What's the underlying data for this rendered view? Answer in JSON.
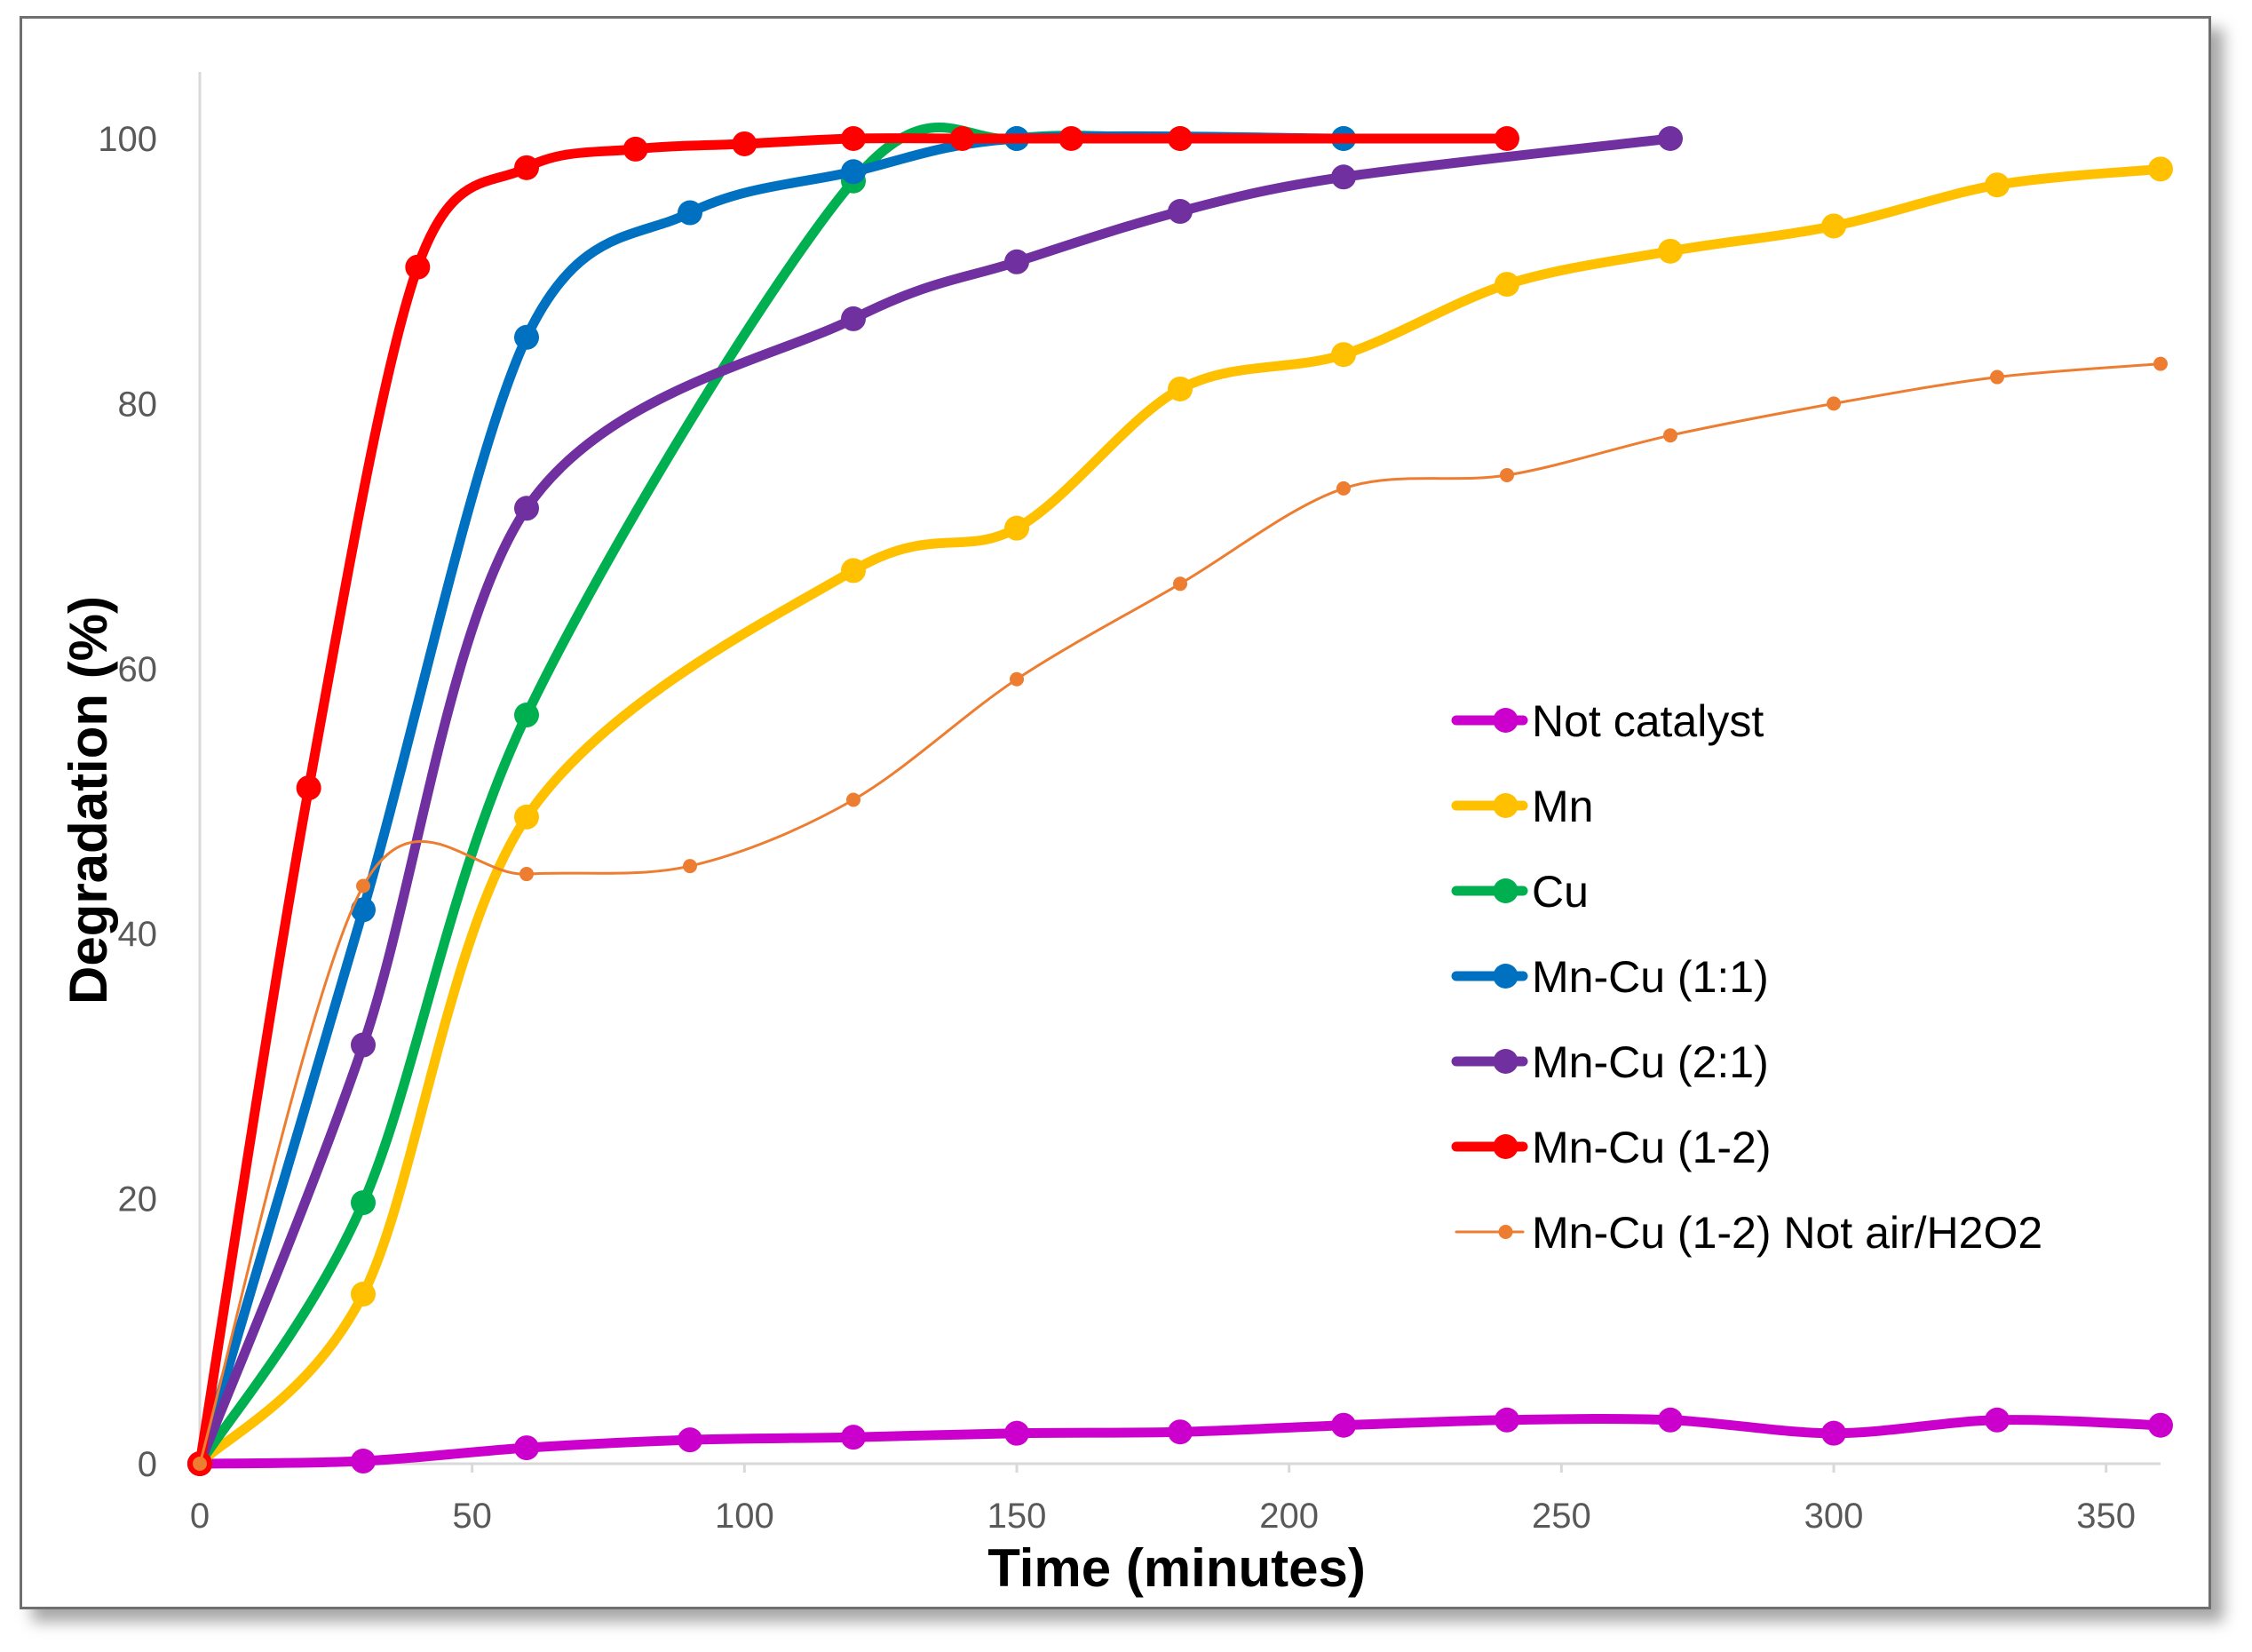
{
  "chart_data": {
    "type": "line",
    "title": "",
    "xlabel": "Time (minutes)",
    "ylabel": "Degradation (%)",
    "xlim": [
      0,
      360
    ],
    "ylim": [
      0,
      100
    ],
    "xticks": [
      "0",
      "50",
      "100",
      "150",
      "200",
      "250",
      "300",
      "350"
    ],
    "yticks": [
      "0",
      "20",
      "40",
      "60",
      "80",
      "100"
    ],
    "grid": false,
    "legend_position": "right",
    "series": [
      {
        "name": "Not catalyst",
        "color": "#cc00cc",
        "x": [
          0,
          30,
          60,
          90,
          120,
          150,
          180,
          210,
          240,
          270,
          300,
          330,
          360
        ],
        "y": [
          0,
          0.2,
          1.2,
          1.8,
          2.0,
          2.3,
          2.4,
          2.9,
          3.3,
          3.3,
          2.3,
          3.3,
          2.9
        ]
      },
      {
        "name": "Mn",
        "color": "#ffc000",
        "x": [
          0,
          30,
          60,
          120,
          150,
          180,
          210,
          240,
          270,
          300,
          330,
          360
        ],
        "y": [
          0,
          12.8,
          48.8,
          67.4,
          70.6,
          81.1,
          83.7,
          89.0,
          91.5,
          93.4,
          96.5,
          97.7
        ]
      },
      {
        "name": "Cu",
        "color": "#00b050",
        "x": [
          0,
          30,
          60,
          120,
          150,
          180,
          210
        ],
        "y": [
          0,
          19.7,
          56.5,
          96.8,
          100,
          100,
          100
        ]
      },
      {
        "name": "Mn-Cu (1:1)",
        "color": "#0070c0",
        "x": [
          0,
          30,
          60,
          90,
          120,
          150,
          210
        ],
        "y": [
          0,
          41.8,
          85.0,
          94.4,
          97.5,
          100,
          100
        ]
      },
      {
        "name": "Mn-Cu (2:1)",
        "color": "#7030a0",
        "x": [
          0,
          30,
          60,
          120,
          150,
          180,
          210,
          270
        ],
        "y": [
          0,
          31.6,
          72.1,
          86.4,
          90.7,
          94.5,
          97.1,
          100
        ]
      },
      {
        "name": "Mn-Cu (1-2)",
        "color": "#ff0000",
        "x": [
          0,
          20,
          40,
          60,
          80,
          100,
          120,
          140,
          160,
          180,
          240
        ],
        "y": [
          0,
          51.0,
          90.3,
          97.8,
          99.2,
          99.6,
          100,
          100,
          100,
          100,
          100
        ]
      },
      {
        "name": "Mn-Cu (1-2) Not air/H2O2",
        "color": "#ed7d31",
        "x": [
          0,
          30,
          60,
          90,
          120,
          150,
          180,
          210,
          240,
          270,
          300,
          330,
          360
        ],
        "y": [
          0,
          43.6,
          44.5,
          45.1,
          50.1,
          59.2,
          66.4,
          73.6,
          74.6,
          77.6,
          80.0,
          82.0,
          83.0
        ]
      }
    ]
  }
}
